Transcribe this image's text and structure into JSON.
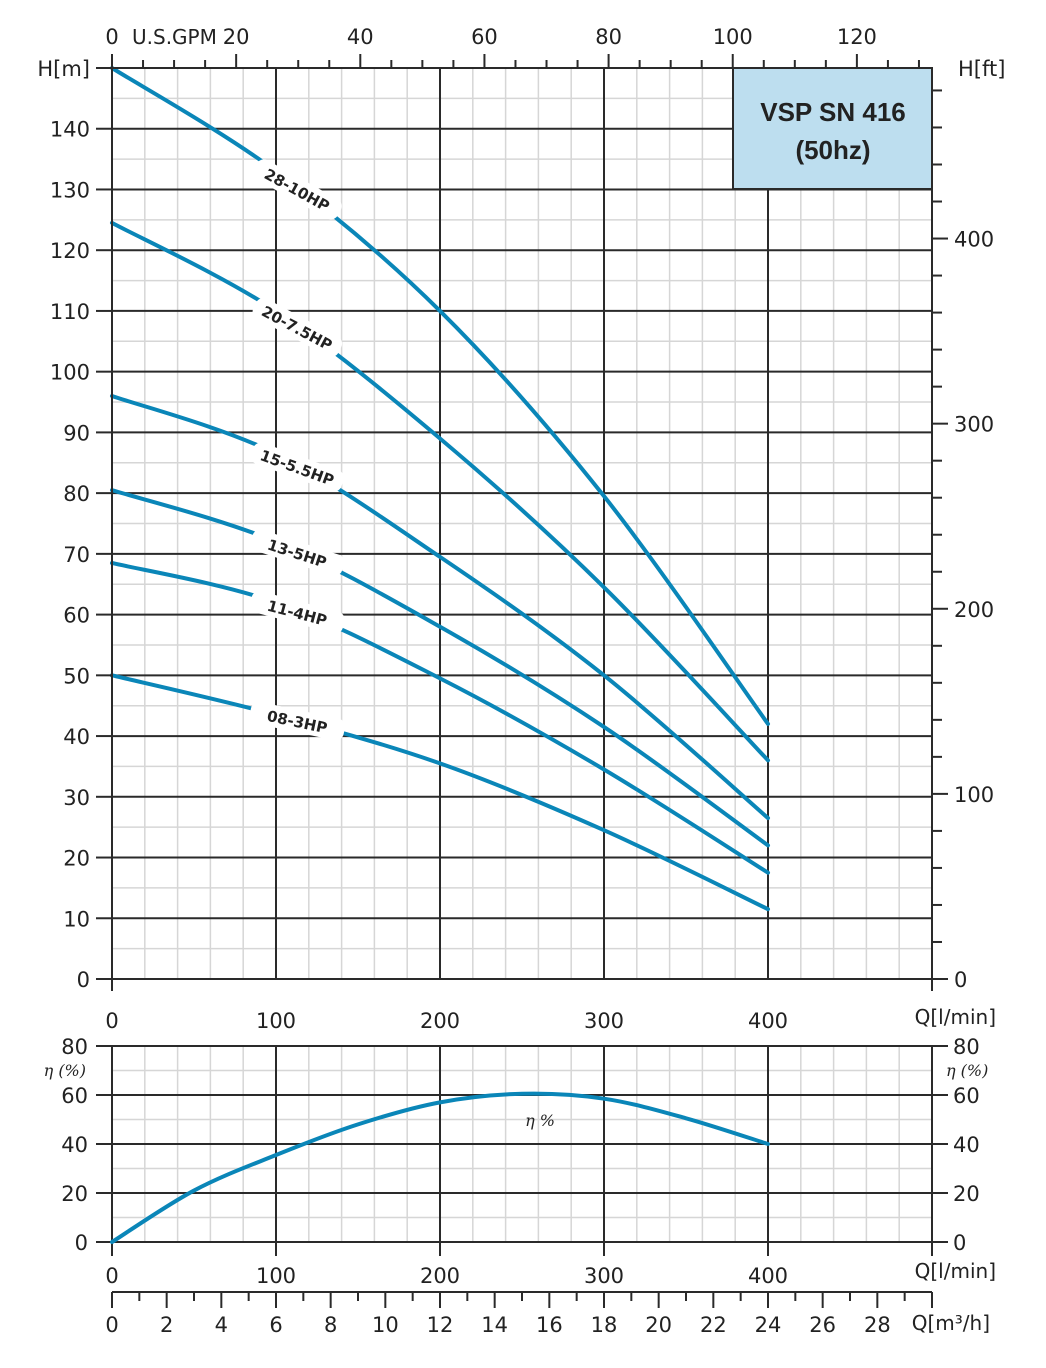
{
  "title": {
    "model": "VSP SN 416",
    "frequency": "(50hz)",
    "box_color": "#bddeef"
  },
  "colors": {
    "curve": "#0a86b8",
    "major_grid": "#2a2a2a",
    "minor_grid": "#d6d6d6"
  },
  "axes": {
    "top_gpm": {
      "unit_label": "U.S.GPM",
      "ticks": [
        "0",
        "20",
        "40",
        "60",
        "80",
        "100",
        "120"
      ]
    },
    "left_h_m": {
      "unit_label": "H[m]",
      "ticks": [
        "0",
        "10",
        "20",
        "30",
        "40",
        "50",
        "60",
        "70",
        "80",
        "90",
        "100",
        "110",
        "120",
        "130",
        "140"
      ]
    },
    "right_h_ft": {
      "unit_label": "H[ft]",
      "ticks": [
        "0",
        "100",
        "200",
        "300",
        "400"
      ]
    },
    "q_lmin": {
      "unit_label": "Q[l/min]",
      "ticks": [
        "0",
        "100",
        "200",
        "300",
        "400"
      ]
    },
    "eta_left": {
      "unit_label": "η (%)",
      "ticks": [
        "0",
        "20",
        "40",
        "60",
        "80"
      ]
    },
    "eta_right": {
      "unit_label": "η (%)",
      "ticks": [
        "0",
        "20",
        "40",
        "60",
        "80"
      ]
    },
    "q_lmin_bottom": {
      "unit_label": "Q[l/min]",
      "ticks": [
        "0",
        "100",
        "200",
        "300",
        "400"
      ]
    },
    "q_m3h": {
      "unit_label": "Q[m³/h]",
      "ticks": [
        "0",
        "2",
        "4",
        "6",
        "8",
        "10",
        "12",
        "14",
        "16",
        "18",
        "20",
        "22",
        "24",
        "26",
        "28"
      ]
    }
  },
  "efficiency_label": "η %",
  "chart_data": [
    {
      "type": "line",
      "title": "VSP SN 416 (50hz)",
      "xlabel": "Q[l/min]",
      "ylabel": "H[m]",
      "secondary_ylabel": "H[ft]",
      "secondary_xlabel": "U.S.GPM",
      "xlim": [
        0,
        500
      ],
      "ylim": [
        0,
        150
      ],
      "grid": true,
      "x": [
        0,
        100,
        200,
        300,
        400
      ],
      "series": [
        {
          "name": "28-10HP",
          "values": [
            150,
            133,
            110,
            79.5,
            42
          ]
        },
        {
          "name": "20-7.5HP",
          "values": [
            124.5,
            110,
            89,
            64.5,
            36
          ]
        },
        {
          "name": "15-5.5HP",
          "values": [
            96,
            86.5,
            69.5,
            50,
            26.5
          ]
        },
        {
          "name": "13-5HP",
          "values": [
            80.5,
            72,
            58,
            41.5,
            22
          ]
        },
        {
          "name": "11-4HP",
          "values": [
            68.5,
            62,
            49.5,
            34.5,
            17.5
          ]
        },
        {
          "name": "08-3HP",
          "values": [
            50,
            43.5,
            35.5,
            24.5,
            11.5
          ]
        }
      ]
    },
    {
      "type": "line",
      "title": "Efficiency",
      "xlabel": "Q[l/min]",
      "ylabel": "η (%)",
      "secondary_xlabel": "Q[m³/h]",
      "xlim": [
        0,
        500
      ],
      "ylim": [
        0,
        80
      ],
      "grid": true,
      "x": [
        0,
        50,
        100,
        150,
        200,
        250,
        300,
        350,
        400
      ],
      "series": [
        {
          "name": "η %",
          "values": [
            0,
            21,
            35.5,
            48,
            57,
            60.5,
            58.5,
            50.5,
            40
          ]
        }
      ]
    }
  ]
}
